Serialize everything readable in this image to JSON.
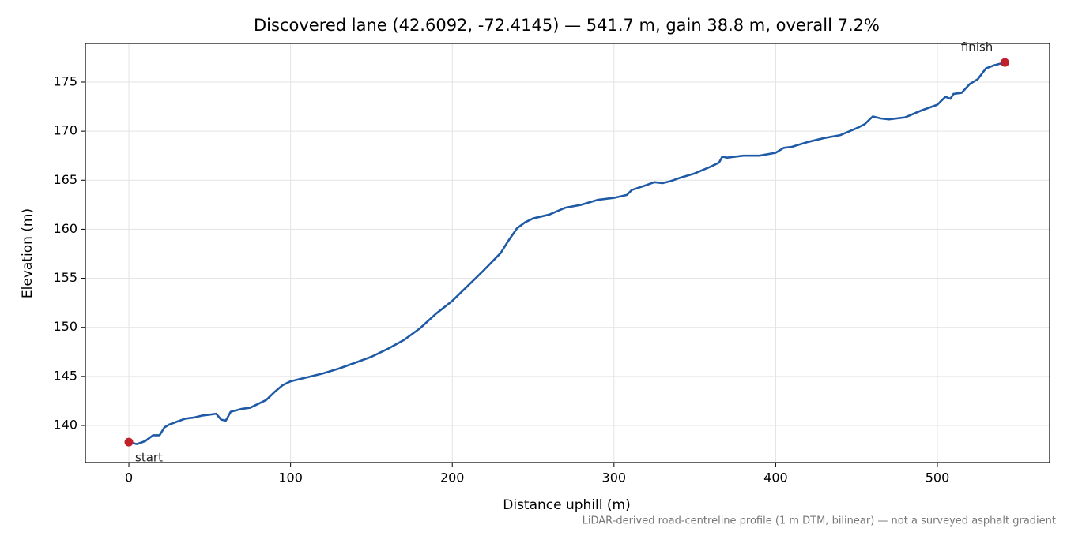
{
  "chart_data": {
    "type": "line",
    "title": "Discovered lane (42.6092, -72.4145) — 541.7 m, gain 38.8 m, overall 7.2%",
    "x_label": "Distance uphill (m)",
    "y_label": "Elevation (m)",
    "footnote": "LiDAR-derived road-centreline profile (1 m DTM, bilinear) — not a surveyed asphalt gradient",
    "xlim": [
      -26.9,
      569.4
    ],
    "ylim": [
      136.22,
      178.94
    ],
    "xticks": [
      0,
      100,
      200,
      300,
      400,
      500
    ],
    "yticks": [
      140,
      145,
      150,
      155,
      160,
      165,
      170,
      175
    ],
    "grid": true,
    "series": [
      {
        "color": "#1f5aa6",
        "x": [
          0,
          5,
          10,
          15,
          19,
          22,
          25,
          30,
          35,
          40,
          45,
          50,
          54,
          57,
          60,
          63,
          70,
          75,
          80,
          85,
          90,
          95,
          100,
          110,
          120,
          130,
          140,
          150,
          160,
          170,
          180,
          190,
          200,
          210,
          220,
          230,
          235,
          240,
          245,
          250,
          260,
          270,
          280,
          290,
          300,
          308,
          311,
          320,
          325,
          330,
          335,
          340,
          350,
          360,
          365,
          367,
          370,
          380,
          390,
          400,
          405,
          410,
          420,
          430,
          440,
          450,
          455,
          460,
          465,
          470,
          480,
          490,
          500,
          505,
          508,
          510,
          515,
          520,
          525,
          530,
          535,
          541.7
        ],
        "values": [
          138.3,
          138.1,
          138.4,
          139.0,
          139.0,
          139.8,
          140.1,
          140.4,
          140.7,
          140.8,
          141.0,
          141.1,
          141.2,
          140.6,
          140.5,
          141.4,
          141.7,
          141.8,
          142.2,
          142.6,
          143.4,
          144.1,
          144.5,
          144.9,
          145.3,
          145.8,
          146.4,
          147.0,
          147.8,
          148.7,
          149.9,
          151.4,
          152.7,
          154.3,
          155.9,
          157.6,
          158.9,
          160.1,
          160.7,
          161.1,
          161.5,
          162.2,
          162.5,
          163.0,
          163.2,
          163.5,
          164.0,
          164.5,
          164.8,
          164.7,
          164.9,
          165.2,
          165.7,
          166.4,
          166.8,
          167.4,
          167.3,
          167.5,
          167.5,
          167.8,
          168.3,
          168.4,
          168.9,
          169.3,
          169.6,
          170.3,
          170.7,
          171.5,
          171.3,
          171.2,
          171.4,
          172.1,
          172.7,
          173.5,
          173.3,
          173.8,
          173.9,
          174.8,
          175.3,
          176.4,
          176.7,
          177.0
        ]
      }
    ],
    "annotations": [
      {
        "text": "start",
        "x": 0,
        "y": 138.3,
        "color": "#c0202a"
      },
      {
        "text": "finish",
        "x": 541.7,
        "y": 177.0,
        "color": "#c0202a"
      }
    ]
  }
}
